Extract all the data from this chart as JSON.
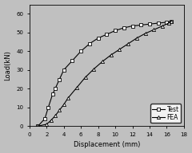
{
  "xlabel": "Displacement (mm)",
  "ylabel": "Load(kN)",
  "xlim": [
    0,
    18
  ],
  "ylim": [
    0,
    65
  ],
  "xticks": [
    0,
    2,
    4,
    6,
    8,
    10,
    12,
    14,
    16,
    18
  ],
  "yticks": [
    0,
    10,
    20,
    30,
    40,
    50,
    60
  ],
  "background_color": "#c0c0c0",
  "plot_bg_color": "#c0c0c0",
  "test_x": [
    1.0,
    1.8,
    2.2,
    2.7,
    3.0,
    3.5,
    4.0,
    5.0,
    6.0,
    7.0,
    8.0,
    9.0,
    10.0,
    11.0,
    12.0,
    13.0,
    14.0,
    15.0,
    16.0,
    16.5
  ],
  "test_y": [
    0.0,
    4.0,
    10.0,
    17.0,
    20.0,
    25.0,
    30.0,
    35.0,
    40.0,
    44.0,
    47.0,
    49.0,
    51.0,
    52.5,
    53.5,
    54.0,
    54.5,
    55.0,
    55.5,
    56.0
  ],
  "fea_x": [
    1.0,
    2.0,
    2.5,
    3.0,
    3.5,
    4.0,
    4.5,
    5.5,
    6.5,
    7.5,
    8.5,
    9.5,
    10.5,
    11.5,
    12.5,
    13.5,
    14.5,
    15.5,
    16.2,
    16.5
  ],
  "fea_y": [
    0.0,
    1.0,
    3.0,
    5.5,
    8.5,
    11.5,
    15.0,
    20.5,
    26.0,
    30.5,
    34.5,
    38.0,
    41.0,
    44.0,
    47.0,
    49.5,
    51.5,
    53.5,
    55.0,
    56.0
  ],
  "line_color": "#000000",
  "marker_test": "s",
  "marker_fea": "^",
  "markersize": 3,
  "linewidth": 0.8,
  "fontsize_label": 6,
  "fontsize_tick": 5,
  "fontsize_legend": 5.5,
  "legend_loc": "lower right"
}
